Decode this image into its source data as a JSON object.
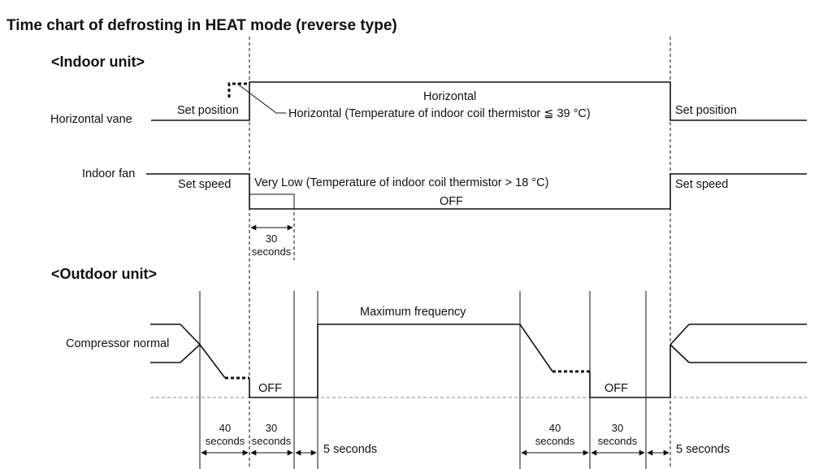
{
  "title": "Time chart of defrosting in HEAT mode (reverse type)",
  "indoor": {
    "heading": "<Indoor unit>",
    "vane_label": "Horizontal vane",
    "vane_set_position_left": "Set position",
    "vane_horizontal": "Horizontal",
    "vane_horizontal_note": "Horizontal (Temperature of indoor coil thermistor ≦ 39 °C)",
    "vane_set_position_right": "Set position",
    "fan_label": "Indoor fan",
    "fan_set_speed_left": "Set speed",
    "fan_very_low": "Very Low (Temperature of indoor coil thermistor > 18 °C)",
    "fan_off": "OFF",
    "fan_set_speed_right": "Set speed",
    "delay_value": "30",
    "delay_unit": "seconds"
  },
  "outdoor": {
    "heading": "<Outdoor unit>",
    "compressor_label": "Compressor normal",
    "max_frequency": "Maximum frequency",
    "off_left": "OFF",
    "off_right": "OFF",
    "intervals": [
      {
        "value": "40",
        "unit": "seconds"
      },
      {
        "value": "30",
        "unit": "seconds"
      },
      {
        "value": "",
        "unit": "5 seconds"
      },
      {
        "value": "40",
        "unit": "seconds"
      },
      {
        "value": "30",
        "unit": "seconds"
      },
      {
        "value": "",
        "unit": "5 seconds"
      }
    ]
  }
}
